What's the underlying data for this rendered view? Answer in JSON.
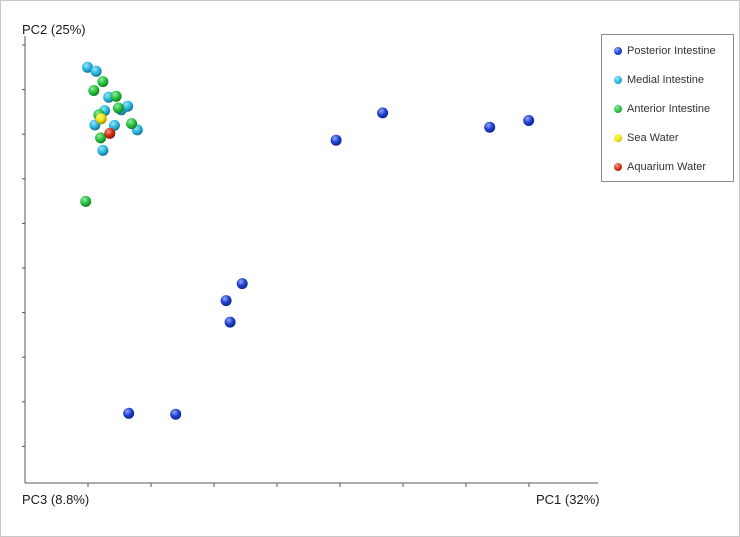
{
  "chart_data": {
    "type": "scatter",
    "ylabel": "PC2 (25%)",
    "xlabel_left": "PC3 (8.8%)",
    "xlabel_right": "PC1 (32%)",
    "x_range": [
      0,
      100
    ],
    "y_range": [
      0,
      100
    ],
    "grid": false,
    "legend_position": "top-right",
    "series": [
      {
        "name": "Posterior Intestine",
        "color": "#1a3fd4",
        "points": [
          {
            "x": 18.1,
            "y": 15.6
          },
          {
            "x": 26.3,
            "y": 15.4
          },
          {
            "x": 35.1,
            "y": 40.8
          },
          {
            "x": 35.8,
            "y": 36.0
          },
          {
            "x": 37.9,
            "y": 44.6
          },
          {
            "x": 54.3,
            "y": 76.7
          },
          {
            "x": 62.4,
            "y": 82.8
          },
          {
            "x": 81.1,
            "y": 79.6
          },
          {
            "x": 87.9,
            "y": 81.1
          }
        ]
      },
      {
        "name": "Medial Intestine",
        "color": "#27b8e3",
        "points": [
          {
            "x": 10.9,
            "y": 93.0
          },
          {
            "x": 12.4,
            "y": 92.1
          },
          {
            "x": 14.6,
            "y": 86.3
          },
          {
            "x": 13.9,
            "y": 83.3
          },
          {
            "x": 16.8,
            "y": 83.5
          },
          {
            "x": 17.9,
            "y": 84.3
          },
          {
            "x": 12.2,
            "y": 80.1
          },
          {
            "x": 15.6,
            "y": 80.0
          },
          {
            "x": 19.6,
            "y": 79.0
          },
          {
            "x": 13.6,
            "y": 74.4
          }
        ]
      },
      {
        "name": "Anterior Intestine",
        "color": "#22c43a",
        "points": [
          {
            "x": 13.6,
            "y": 89.8
          },
          {
            "x": 12.0,
            "y": 87.8
          },
          {
            "x": 15.9,
            "y": 86.5
          },
          {
            "x": 16.3,
            "y": 83.9
          },
          {
            "x": 12.9,
            "y": 82.4
          },
          {
            "x": 18.6,
            "y": 80.4
          },
          {
            "x": 13.2,
            "y": 77.2
          },
          {
            "x": 10.6,
            "y": 63.0
          }
        ]
      },
      {
        "name": "Sea Water",
        "color": "#f0e400",
        "points": [
          {
            "x": 13.3,
            "y": 81.5
          }
        ]
      },
      {
        "name": "Aquarium Water",
        "color": "#d42a10",
        "points": [
          {
            "x": 14.8,
            "y": 78.2
          }
        ]
      }
    ]
  }
}
